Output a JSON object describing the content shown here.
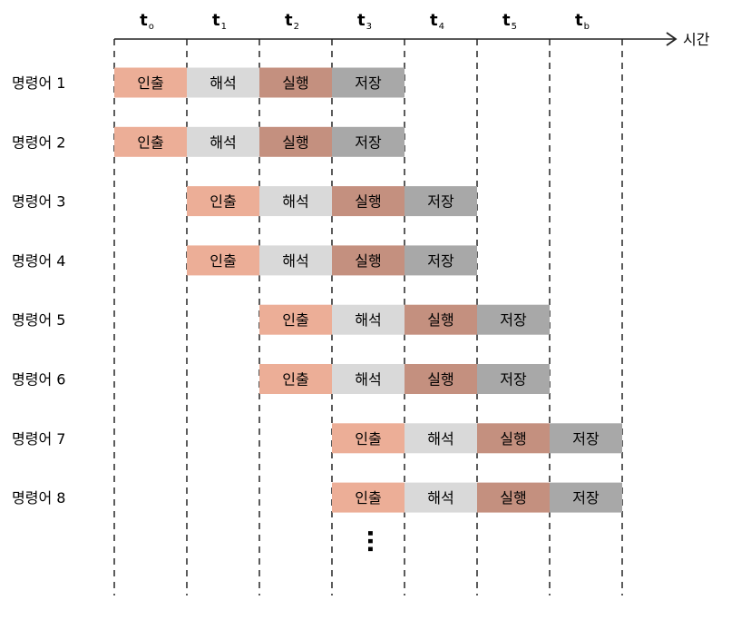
{
  "timeline": {
    "axis_label": "시간",
    "ticks": [
      {
        "main": "t",
        "sub": "o"
      },
      {
        "main": "t",
        "sub": "1"
      },
      {
        "main": "t",
        "sub": "2"
      },
      {
        "main": "t",
        "sub": "3"
      },
      {
        "main": "t",
        "sub": "4"
      },
      {
        "main": "t",
        "sub": "5"
      },
      {
        "main": "t",
        "sub": "b"
      }
    ]
  },
  "stages": [
    {
      "label": "인출",
      "color": "#ecae97"
    },
    {
      "label": "해석",
      "color": "#d9d9d9"
    },
    {
      "label": "실행",
      "color": "#c4907f"
    },
    {
      "label": "저장",
      "color": "#a8a8a8"
    }
  ],
  "instructions": [
    {
      "label": "명령어 1",
      "start": 0
    },
    {
      "label": "명령어 2",
      "start": 0
    },
    {
      "label": "명령어 3",
      "start": 1
    },
    {
      "label": "명령어 4",
      "start": 1
    },
    {
      "label": "명령어 5",
      "start": 2
    },
    {
      "label": "명령어 6",
      "start": 2
    },
    {
      "label": "명령어 7",
      "start": 3
    },
    {
      "label": "명령어 8",
      "start": 3
    }
  ],
  "continuation": "…"
}
